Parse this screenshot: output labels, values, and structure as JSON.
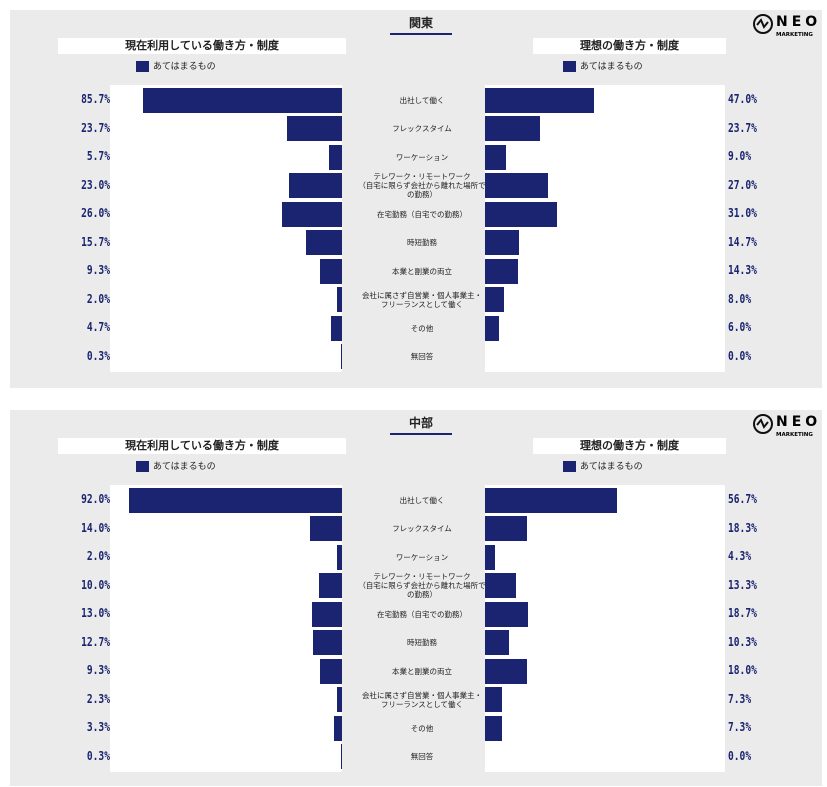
{
  "logo": {
    "name": "NEO",
    "sub": "MARKETING"
  },
  "chart_data": [
    {
      "type": "bar",
      "title": "関東",
      "categories": [
        "出社して働く",
        "フレックスタイム",
        "ワーケーション",
        "テレワーク・リモートワーク\n（自宅に限らず会社から離れた場所で\nの勤務）",
        "在宅勤務（自宅での勤務）",
        "時短勤務",
        "本業と副業の両立",
        "会社に属さず自営業・個人事業主・\nフリーランスとして働く",
        "その他",
        "無回答"
      ],
      "xlim": [
        0,
        100
      ],
      "series": [
        {
          "title": "現在利用している働き方・制度",
          "name": "あてはまるもの",
          "color": "#1a2470",
          "values": [
            85.7,
            23.7,
            5.7,
            23.0,
            26.0,
            15.7,
            9.3,
            2.0,
            4.7,
            0.3
          ],
          "value_labels": [
            "85.7%",
            "23.7%",
            "5.7%",
            "23.0%",
            "26.0%",
            "15.7%",
            "9.3%",
            "2.0%",
            "4.7%",
            "0.3%"
          ]
        },
        {
          "title": "理想の働き方・制度",
          "name": "あてはまるもの",
          "color": "#1a2470",
          "values": [
            47.0,
            23.7,
            9.0,
            27.0,
            31.0,
            14.7,
            14.3,
            8.0,
            6.0,
            0.0
          ],
          "value_labels": [
            "47.0%",
            "23.7%",
            "9.0%",
            "27.0%",
            "31.0%",
            "14.7%",
            "14.3%",
            "8.0%",
            "6.0%",
            "0.0%"
          ]
        }
      ]
    },
    {
      "type": "bar",
      "title": "中部",
      "categories": [
        "出社して働く",
        "フレックスタイム",
        "ワーケーション",
        "テレワーク・リモートワーク\n（自宅に限らず会社から離れた場所で\nの勤務）",
        "在宅勤務（自宅での勤務）",
        "時短勤務",
        "本業と副業の両立",
        "会社に属さず自営業・個人事業主・\nフリーランスとして働く",
        "その他",
        "無回答"
      ],
      "xlim": [
        0,
        100
      ],
      "series": [
        {
          "title": "現在利用している働き方・制度",
          "name": "あてはまるもの",
          "color": "#1a2470",
          "values": [
            92.0,
            14.0,
            2.0,
            10.0,
            13.0,
            12.7,
            9.3,
            2.3,
            3.3,
            0.3
          ],
          "value_labels": [
            "92.0%",
            "14.0%",
            "2.0%",
            "10.0%",
            "13.0%",
            "12.7%",
            "9.3%",
            "2.3%",
            "3.3%",
            "0.3%"
          ]
        },
        {
          "title": "理想の働き方・制度",
          "name": "あてはまるもの",
          "color": "#1a2470",
          "values": [
            56.7,
            18.3,
            4.3,
            13.3,
            18.7,
            10.3,
            18.0,
            7.3,
            7.3,
            0.0
          ],
          "value_labels": [
            "56.7%",
            "18.3%",
            "4.3%",
            "13.3%",
            "18.7%",
            "10.3%",
            "18.0%",
            "7.3%",
            "7.3%",
            "0.0%"
          ]
        }
      ]
    }
  ]
}
